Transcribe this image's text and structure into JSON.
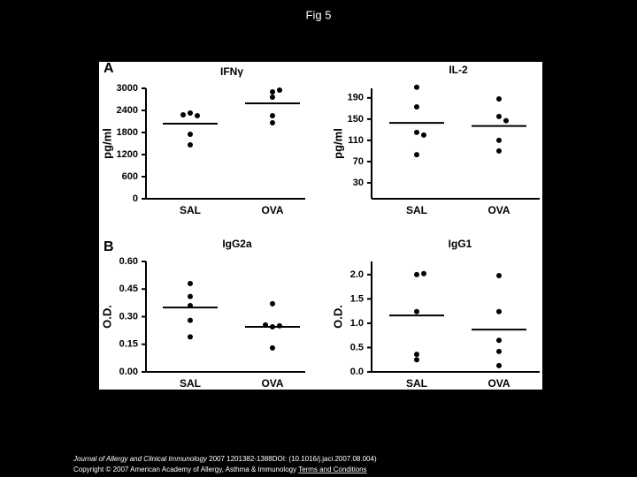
{
  "slide_title": "Fig 5",
  "footer": {
    "journal": "Journal of Allergy and Clinical Immunology",
    "citation": "2007 1201382-1388DOI: (10.1016/j.jaci.2007.08.004)",
    "copyright": "Copyright © 2007 American Academy of Allergy, Asthma & Immunology",
    "link": "Terms and Conditions"
  },
  "chart_data": [
    {
      "type": "strip",
      "panel": "A",
      "title": "IFNγ",
      "ylabel": "pg/ml",
      "categories": [
        "SAL",
        "OVA"
      ],
      "values": [
        [
          2328,
          2256,
          2280,
          1752,
          1464
        ],
        [
          2904,
          2760,
          2952,
          2256,
          2064
        ]
      ],
      "means": [
        2040,
        2592
      ],
      "ylim": [
        0,
        3000
      ],
      "yticks": [
        0,
        600,
        1200,
        1800,
        2400,
        3000
      ],
      "color": "#000000"
    },
    {
      "type": "strip",
      "title": "IL-2",
      "ylabel": "pg/ml",
      "categories": [
        "SAL",
        "OVA"
      ],
      "values": [
        [
          210,
          173,
          125,
          120,
          83
        ],
        [
          188,
          155,
          147,
          110,
          90
        ]
      ],
      "means": [
        143,
        137
      ],
      "ylim": [
        0,
        208
      ],
      "yticks": [
        30,
        70,
        110,
        150,
        190
      ],
      "color": "#000000"
    },
    {
      "type": "strip",
      "panel": "B",
      "title": "IgG2a",
      "ylabel": "O.D.",
      "categories": [
        "SAL",
        "OVA"
      ],
      "values": [
        [
          0.48,
          0.41,
          0.36,
          0.28,
          0.19
        ],
        [
          0.37,
          0.245,
          0.25,
          0.255,
          0.13
        ]
      ],
      "means": [
        0.35,
        0.245
      ],
      "ylim": [
        0,
        0.6
      ],
      "yticks": [
        {
          "value": 0,
          "label": "0.00"
        },
        {
          "value": 0.15,
          "label": "0.15"
        },
        {
          "value": 0.3,
          "label": "0.30"
        },
        {
          "value": 0.45,
          "label": "0.45"
        },
        {
          "value": 0.6,
          "label": "0.60"
        }
      ],
      "color": "#000000"
    },
    {
      "type": "strip",
      "title": "IgG1",
      "ylabel": "O.D.",
      "categories": [
        "SAL",
        "OVA"
      ],
      "values": [
        [
          2.0,
          2.02,
          1.24,
          0.36,
          0.25
        ],
        [
          1.98,
          1.24,
          0.65,
          0.42,
          0.13
        ]
      ],
      "means": [
        1.16,
        0.87
      ],
      "ylim": [
        0,
        2.27
      ],
      "yticks": [
        {
          "value": 0,
          "label": "0.0"
        },
        {
          "value": 0.5,
          "label": "0.5"
        },
        {
          "value": 1,
          "label": "1.0"
        },
        {
          "value": 1.5,
          "label": "1.5"
        },
        {
          "value": 2,
          "label": "2.0"
        }
      ],
      "color": "#000000"
    }
  ]
}
